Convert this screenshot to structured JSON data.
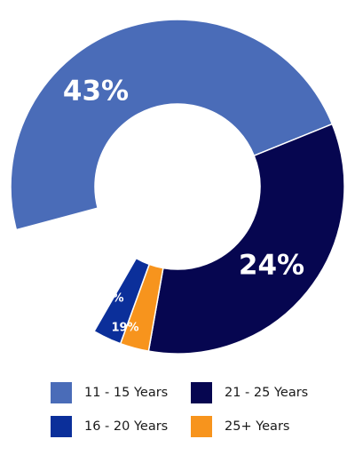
{
  "chart_data": {
    "type": "donut",
    "title": "",
    "series": [
      {
        "name": "11 - 15 Years",
        "value": 43,
        "label": "43%",
        "color": "#4a6cb8"
      },
      {
        "name": "21 - 25 Years",
        "value": 24,
        "label": "24%",
        "color": "#060650"
      },
      {
        "name": "16 - 20 Years",
        "value": 14,
        "label": "14%",
        "color": "#0b2f9a"
      },
      {
        "name": "25+ Years",
        "value": 19,
        "label": "19%",
        "color": "#f7941d"
      }
    ],
    "legend_order": [
      "11 - 15 Years",
      "21 - 25 Years",
      "16 - 20 Years",
      "25+ Years"
    ],
    "legend_position": "bottom"
  }
}
